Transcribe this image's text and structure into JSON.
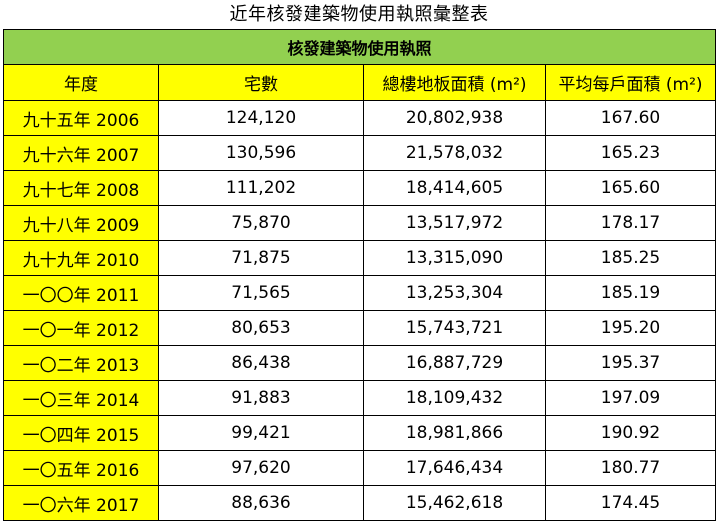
{
  "title": "近年核發建築物使用執照彙整表",
  "table": {
    "banner": "核發建築物使用執照",
    "columns": [
      "年度",
      "宅數",
      "總樓地板面積 (m²)",
      "平均每戶面積 (m²)"
    ],
    "rows": [
      {
        "year": "九十五年 2006",
        "units": "124,120",
        "floor_area": "20,802,938",
        "avg_area": "167.60"
      },
      {
        "year": "九十六年 2007",
        "units": "130,596",
        "floor_area": "21,578,032",
        "avg_area": "165.23"
      },
      {
        "year": "九十七年 2008",
        "units": "111,202",
        "floor_area": "18,414,605",
        "avg_area": "165.60"
      },
      {
        "year": "九十八年 2009",
        "units": "75,870",
        "floor_area": "13,517,972",
        "avg_area": "178.17"
      },
      {
        "year": "九十九年 2010",
        "units": "71,875",
        "floor_area": "13,315,090",
        "avg_area": "185.25"
      },
      {
        "year": "一〇〇年 2011",
        "units": "71,565",
        "floor_area": "13,253,304",
        "avg_area": "185.19"
      },
      {
        "year": "一〇一年 2012",
        "units": "80,653",
        "floor_area": "15,743,721",
        "avg_area": "195.20"
      },
      {
        "year": "一〇二年 2013",
        "units": "86,438",
        "floor_area": "16,887,729",
        "avg_area": "195.37"
      },
      {
        "year": "一〇三年 2014",
        "units": "91,883",
        "floor_area": "18,109,432",
        "avg_area": "197.09"
      },
      {
        "year": "一〇四年 2015",
        "units": "99,421",
        "floor_area": "18,981,866",
        "avg_area": "190.92"
      },
      {
        "year": "一〇五年 2016",
        "units": "97,620",
        "floor_area": "17,646,434",
        "avg_area": "180.77"
      },
      {
        "year": "一〇六年 2017",
        "units": "88,636",
        "floor_area": "15,462,618",
        "avg_area": "174.45"
      }
    ]
  },
  "colors": {
    "banner_bg": "#92d050",
    "header_bg": "#ffff00",
    "year_bg": "#ffff00"
  }
}
